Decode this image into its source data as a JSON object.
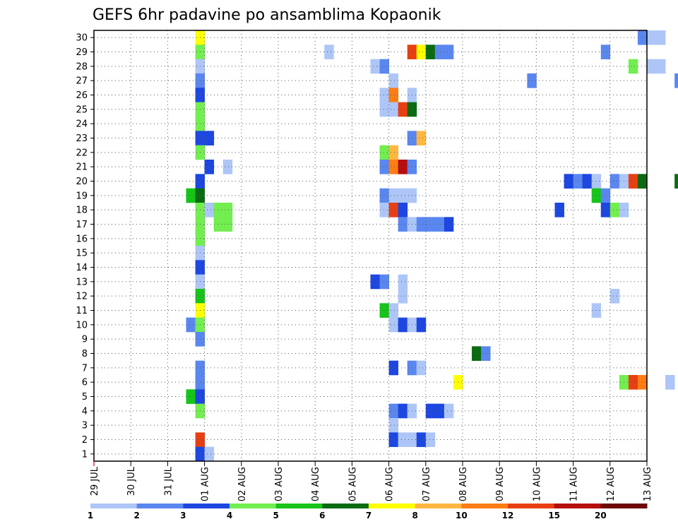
{
  "chart_data": {
    "type": "heatmap",
    "title": "GEFS 6hr padavine po ansamblima Kopaonik",
    "x_ticks": [
      "29 JUL",
      "30 JUL",
      "31 JUL",
      "01 AUG",
      "02 AUG",
      "03 AUG",
      "04 AUG",
      "05 AUG",
      "06 AUG",
      "07 AUG",
      "08 AUG",
      "09 AUG",
      "10 AUG",
      "11 AUG",
      "12 AUG",
      "13 AUG"
    ],
    "y_range": [
      1,
      30
    ],
    "y_ticks": [
      "1",
      "2",
      "3",
      "4",
      "5",
      "6",
      "7",
      "8",
      "9",
      "10",
      "11",
      "12",
      "13",
      "14",
      "15",
      "16",
      "17",
      "18",
      "19",
      "20",
      "21",
      "22",
      "23",
      "24",
      "25",
      "26",
      "27",
      "28",
      "29",
      "30"
    ],
    "grid": true,
    "colorbar": {
      "labels": [
        "1",
        "2",
        "3",
        "4",
        "5",
        "6",
        "7",
        "8",
        "10",
        "12",
        "15",
        "20"
      ],
      "colors": [
        "#aec6f7",
        "#5a87ef",
        "#1d47e0",
        "#72ee50",
        "#16c41a",
        "#0a6b12",
        "#ffff00",
        "#ffb740",
        "#ff7d12",
        "#e83f12",
        "#b50f0f",
        "#6e0808"
      ]
    },
    "cells": [
      {
        "member": 30,
        "x": 2.75,
        "c": 7
      },
      {
        "member": 30,
        "x": 14.75,
        "c": 2
      },
      {
        "member": 30,
        "x": 15.0,
        "c": 1
      },
      {
        "member": 30,
        "x": 15.25,
        "c": 1
      },
      {
        "member": 29,
        "x": 2.75,
        "c": 4
      },
      {
        "member": 29,
        "x": 6.25,
        "c": 1
      },
      {
        "member": 29,
        "x": 8.5,
        "c": 10
      },
      {
        "member": 29,
        "x": 8.75,
        "c": 7
      },
      {
        "member": 29,
        "x": 9.0,
        "c": 6
      },
      {
        "member": 29,
        "x": 9.25,
        "c": 2
      },
      {
        "member": 29,
        "x": 9.5,
        "c": 2
      },
      {
        "member": 29,
        "x": 13.75,
        "c": 2
      },
      {
        "member": 28,
        "x": 2.75,
        "c": 1
      },
      {
        "member": 28,
        "x": 7.5,
        "c": 1
      },
      {
        "member": 28,
        "x": 7.75,
        "c": 2
      },
      {
        "member": 28,
        "x": 14.5,
        "c": 4
      },
      {
        "member": 28,
        "x": 15.0,
        "c": 1
      },
      {
        "member": 28,
        "x": 15.25,
        "c": 1
      },
      {
        "member": 27,
        "x": 2.75,
        "c": 2
      },
      {
        "member": 27,
        "x": 8.0,
        "c": 1
      },
      {
        "member": 27,
        "x": 11.75,
        "c": 2
      },
      {
        "member": 27,
        "x": 15.75,
        "c": 2
      },
      {
        "member": 26,
        "x": 2.75,
        "c": 3
      },
      {
        "member": 26,
        "x": 7.75,
        "c": 1
      },
      {
        "member": 26,
        "x": 8.0,
        "c": 9
      },
      {
        "member": 26,
        "x": 8.5,
        "c": 1
      },
      {
        "member": 25,
        "x": 2.75,
        "c": 4
      },
      {
        "member": 25,
        "x": 7.75,
        "c": 1
      },
      {
        "member": 25,
        "x": 8.0,
        "c": 1
      },
      {
        "member": 25,
        "x": 8.25,
        "c": 10
      },
      {
        "member": 25,
        "x": 8.5,
        "c": 6
      },
      {
        "member": 24,
        "x": 2.75,
        "c": 4
      },
      {
        "member": 23,
        "x": 2.75,
        "c": 3
      },
      {
        "member": 23,
        "x": 3.0,
        "c": 3
      },
      {
        "member": 23,
        "x": 8.5,
        "c": 2
      },
      {
        "member": 23,
        "x": 8.75,
        "c": 8
      },
      {
        "member": 22,
        "x": 2.75,
        "c": 4
      },
      {
        "member": 22,
        "x": 7.75,
        "c": 4
      },
      {
        "member": 22,
        "x": 8.0,
        "c": 8
      },
      {
        "member": 21,
        "x": 3.0,
        "c": 3
      },
      {
        "member": 21,
        "x": 3.5,
        "c": 1
      },
      {
        "member": 21,
        "x": 7.75,
        "c": 2
      },
      {
        "member": 21,
        "x": 8.0,
        "c": 9
      },
      {
        "member": 21,
        "x": 8.25,
        "c": 11
      },
      {
        "member": 21,
        "x": 8.5,
        "c": 2
      },
      {
        "member": 20,
        "x": 2.75,
        "c": 3
      },
      {
        "member": 20,
        "x": 12.75,
        "c": 3
      },
      {
        "member": 20,
        "x": 13.0,
        "c": 2
      },
      {
        "member": 20,
        "x": 13.25,
        "c": 3
      },
      {
        "member": 20,
        "x": 13.5,
        "c": 1
      },
      {
        "member": 20,
        "x": 14.0,
        "c": 2
      },
      {
        "member": 20,
        "x": 14.25,
        "c": 1
      },
      {
        "member": 20,
        "x": 14.5,
        "c": 10
      },
      {
        "member": 20,
        "x": 14.75,
        "c": 6
      },
      {
        "member": 20,
        "x": 15.75,
        "c": 6
      },
      {
        "member": 19,
        "x": 2.5,
        "c": 5
      },
      {
        "member": 19,
        "x": 2.75,
        "c": 6
      },
      {
        "member": 19,
        "x": 7.75,
        "c": 2
      },
      {
        "member": 19,
        "x": 8.0,
        "c": 1
      },
      {
        "member": 19,
        "x": 8.25,
        "c": 1
      },
      {
        "member": 19,
        "x": 8.5,
        "c": 1
      },
      {
        "member": 19,
        "x": 13.5,
        "c": 5
      },
      {
        "member": 19,
        "x": 13.75,
        "c": 2
      },
      {
        "member": 18,
        "x": 2.75,
        "c": 4
      },
      {
        "member": 18,
        "x": 3.0,
        "c": 1
      },
      {
        "member": 18,
        "x": 3.25,
        "c": 4
      },
      {
        "member": 18,
        "x": 3.5,
        "c": 4
      },
      {
        "member": 18,
        "x": 7.75,
        "c": 1
      },
      {
        "member": 18,
        "x": 8.0,
        "c": 10
      },
      {
        "member": 18,
        "x": 8.25,
        "c": 3
      },
      {
        "member": 18,
        "x": 12.5,
        "c": 3
      },
      {
        "member": 18,
        "x": 13.75,
        "c": 3
      },
      {
        "member": 18,
        "x": 14.0,
        "c": 4
      },
      {
        "member": 18,
        "x": 14.25,
        "c": 1
      },
      {
        "member": 17,
        "x": 2.75,
        "c": 4
      },
      {
        "member": 17,
        "x": 3.25,
        "c": 4
      },
      {
        "member": 17,
        "x": 3.5,
        "c": 4
      },
      {
        "member": 17,
        "x": 8.25,
        "c": 2
      },
      {
        "member": 17,
        "x": 8.5,
        "c": 1
      },
      {
        "member": 17,
        "x": 8.75,
        "c": 2
      },
      {
        "member": 17,
        "x": 9.0,
        "c": 2
      },
      {
        "member": 17,
        "x": 9.25,
        "c": 2
      },
      {
        "member": 17,
        "x": 9.5,
        "c": 3
      },
      {
        "member": 16,
        "x": 2.75,
        "c": 4
      },
      {
        "member": 15,
        "x": 2.75,
        "c": 1
      },
      {
        "member": 14,
        "x": 2.75,
        "c": 3
      },
      {
        "member": 13,
        "x": 2.75,
        "c": 1
      },
      {
        "member": 13,
        "x": 7.5,
        "c": 3
      },
      {
        "member": 13,
        "x": 7.75,
        "c": 2
      },
      {
        "member": 13,
        "x": 8.25,
        "c": 1
      },
      {
        "member": 12,
        "x": 2.75,
        "c": 5
      },
      {
        "member": 12,
        "x": 8.25,
        "c": 1
      },
      {
        "member": 12,
        "x": 14.0,
        "c": 1
      },
      {
        "member": 11,
        "x": 2.75,
        "c": 7
      },
      {
        "member": 11,
        "x": 7.75,
        "c": 5
      },
      {
        "member": 11,
        "x": 8.0,
        "c": 1
      },
      {
        "member": 11,
        "x": 13.5,
        "c": 1
      },
      {
        "member": 10,
        "x": 2.5,
        "c": 2
      },
      {
        "member": 10,
        "x": 2.75,
        "c": 4
      },
      {
        "member": 10,
        "x": 8.0,
        "c": 1
      },
      {
        "member": 10,
        "x": 8.25,
        "c": 3
      },
      {
        "member": 10,
        "x": 8.5,
        "c": 1
      },
      {
        "member": 10,
        "x": 8.75,
        "c": 3
      },
      {
        "member": 9,
        "x": 2.75,
        "c": 2
      },
      {
        "member": 8,
        "x": 10.25,
        "c": 6
      },
      {
        "member": 8,
        "x": 10.5,
        "c": 2
      },
      {
        "member": 7,
        "x": 2.75,
        "c": 2
      },
      {
        "member": 7,
        "x": 8.0,
        "c": 3
      },
      {
        "member": 7,
        "x": 8.5,
        "c": 2
      },
      {
        "member": 7,
        "x": 8.75,
        "c": 1
      },
      {
        "member": 6,
        "x": 2.75,
        "c": 2
      },
      {
        "member": 6,
        "x": 9.75,
        "c": 7
      },
      {
        "member": 6,
        "x": 14.25,
        "c": 4
      },
      {
        "member": 6,
        "x": 14.5,
        "c": 10
      },
      {
        "member": 6,
        "x": 14.75,
        "c": 9
      },
      {
        "member": 6,
        "x": 15.5,
        "c": 1
      },
      {
        "member": 5,
        "x": 2.5,
        "c": 5
      },
      {
        "member": 5,
        "x": 2.75,
        "c": 3
      },
      {
        "member": 4,
        "x": 2.75,
        "c": 4
      },
      {
        "member": 4,
        "x": 8.0,
        "c": 2
      },
      {
        "member": 4,
        "x": 8.25,
        "c": 3
      },
      {
        "member": 4,
        "x": 8.5,
        "c": 1
      },
      {
        "member": 4,
        "x": 9.0,
        "c": 3
      },
      {
        "member": 4,
        "x": 9.25,
        "c": 3
      },
      {
        "member": 4,
        "x": 9.5,
        "c": 1
      },
      {
        "member": 3,
        "x": 8.0,
        "c": 1
      },
      {
        "member": 2,
        "x": 2.75,
        "c": 10
      },
      {
        "member": 2,
        "x": 8.0,
        "c": 3
      },
      {
        "member": 2,
        "x": 8.25,
        "c": 1
      },
      {
        "member": 2,
        "x": 8.5,
        "c": 1
      },
      {
        "member": 2,
        "x": 8.75,
        "c": 3
      },
      {
        "member": 2,
        "x": 9.0,
        "c": 1
      },
      {
        "member": 1,
        "x": 2.75,
        "c": 3
      },
      {
        "member": 1,
        "x": 3.0,
        "c": 1
      }
    ]
  }
}
